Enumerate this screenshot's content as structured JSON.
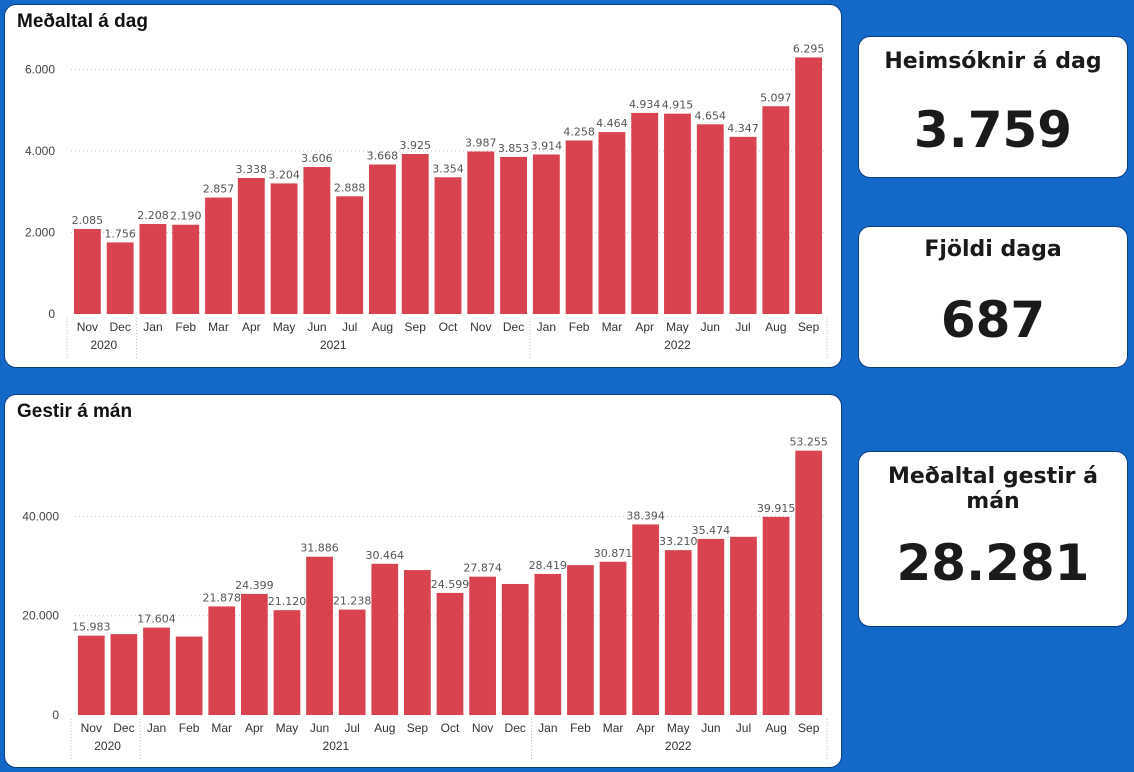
{
  "theme": {
    "background": "#1468c8",
    "bar_color": "#d9434f",
    "panel": "#ffffff"
  },
  "kpis": [
    {
      "label": "Heimsóknir á dag",
      "value": "3.759"
    },
    {
      "label": "Fjöldi daga",
      "value": "687"
    },
    {
      "label": "Meðaltal gestir á mán",
      "value": "28.281"
    }
  ],
  "chart_data": [
    {
      "type": "bar",
      "title": "Meðaltal á dag",
      "categories": [
        "Nov",
        "Dec",
        "Jan",
        "Feb",
        "Mar",
        "Apr",
        "May",
        "Jun",
        "Jul",
        "Aug",
        "Sep",
        "Oct",
        "Nov",
        "Dec",
        "Jan",
        "Feb",
        "Mar",
        "Apr",
        "May",
        "Jun",
        "Jul",
        "Aug",
        "Sep"
      ],
      "year_groups": [
        {
          "label": "2020",
          "start": 0,
          "end": 1
        },
        {
          "label": "2021",
          "start": 2,
          "end": 13
        },
        {
          "label": "2022",
          "start": 14,
          "end": 22
        }
      ],
      "values": [
        2085,
        1756,
        2208,
        2190,
        2857,
        3338,
        3204,
        3606,
        2888,
        3668,
        3925,
        3354,
        3987,
        3853,
        3914,
        4258,
        4464,
        4934,
        4915,
        4654,
        4347,
        5097,
        6295
      ],
      "data_labels": [
        "2.085",
        "1.756",
        "2.208",
        "2.190",
        "2.857",
        "3.338",
        "3.204",
        "3.606",
        "2.888",
        "3.668",
        "3.925",
        "3.354",
        "3.987",
        "3.853",
        "3.914",
        "4.258",
        "4.464",
        "4.934",
        "4.915",
        "4.654",
        "4.347",
        "5.097",
        "6.295"
      ],
      "yticks": [
        0,
        2000,
        4000,
        6000
      ],
      "ytick_labels": [
        "0",
        "2.000",
        "4.000",
        "6.000"
      ],
      "ylim": [
        0,
        6600
      ],
      "grid": true
    },
    {
      "type": "bar",
      "title": "Gestir á mán",
      "categories": [
        "Nov",
        "Dec",
        "Jan",
        "Feb",
        "Mar",
        "Apr",
        "May",
        "Jun",
        "Jul",
        "Aug",
        "Sep",
        "Oct",
        "Nov",
        "Dec",
        "Jan",
        "Feb",
        "Mar",
        "Apr",
        "May",
        "Jun",
        "Jul",
        "Aug",
        "Sep"
      ],
      "year_groups": [
        {
          "label": "2020",
          "start": 0,
          "end": 1
        },
        {
          "label": "2021",
          "start": 2,
          "end": 13
        },
        {
          "label": "2022",
          "start": 14,
          "end": 22
        }
      ],
      "values": [
        15983,
        16300,
        17604,
        15800,
        21878,
        24399,
        21120,
        31886,
        21238,
        30464,
        29200,
        24599,
        27874,
        26400,
        28419,
        30200,
        30871,
        38394,
        33210,
        35474,
        35900,
        39915,
        53255
      ],
      "data_labels": [
        "15.983",
        "",
        "17.604",
        "",
        "21.878",
        "24.399",
        "21.120",
        "31.886",
        "21.238",
        "30.464",
        "",
        "24.599",
        "27.874",
        "",
        "28.419",
        "",
        "30.871",
        "38.394",
        "33.210",
        "35.474",
        "",
        "39.915",
        "53.255"
      ],
      "yticks": [
        0,
        20000,
        40000
      ],
      "ytick_labels": [
        "0",
        "20.000",
        "40.000"
      ],
      "ylim": [
        0,
        55000
      ],
      "grid": true
    }
  ]
}
